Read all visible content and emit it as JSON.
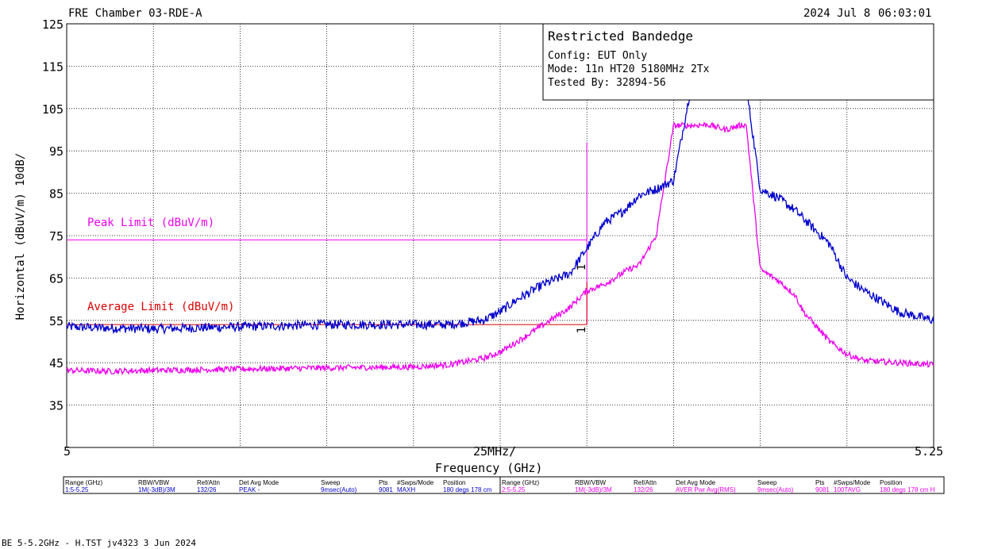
{
  "header": {
    "chamber": "FRE Chamber 03-RDE-A",
    "date": "2024 Jul 8",
    "time": "06:03:01"
  },
  "info_box": {
    "title": "Restricted Bandedge",
    "config": "Config: EUT Only",
    "mode": "Mode: 11n HT20 5180MHz 2Tx",
    "tested_by": "Tested By: 32894-56"
  },
  "x_axis": {
    "left": "5",
    "center": "25MHz/",
    "right": "5.25",
    "label": "Frequency (GHz)"
  },
  "y_axis": {
    "label": "Horizontal (dBuV/m) 10dB/"
  },
  "limits": {
    "peak_label": "Peak Limit (dBuV/m)",
    "average_label": "Average Limit (dBuV/m)"
  },
  "markers": {
    "upper": "1",
    "lower": "1"
  },
  "settings_table": {
    "headers": [
      "Range (GHz)",
      "RBW/VBW",
      "Ref/Attn",
      "Det Avg Mode",
      "Sweep",
      "Pts",
      "#Swps/Mode",
      "Position"
    ],
    "rows": [
      [
        "1:5-5.25",
        "1M(-3dB)/3M",
        "132/26",
        "PEAK  -",
        "9msec(Auto)",
        "9081",
        "MAXH",
        "180 degs 178 cm"
      ],
      [
        "2:5-5.25",
        "1M(-3dB)/3M",
        "132/26",
        "AVER Pwr Avg(RMS)",
        "9msec(Auto)",
        "9081",
        "100TAVG",
        "180 degs 178 cm H"
      ]
    ]
  },
  "footer": "BE 5-5.2GHz - H.TST jv4323  3 Jun 2024",
  "colors": {
    "peak_trace": "#0000cc",
    "average_trace": "#ee00ee",
    "peak_limit": "#ee00ee",
    "average_limit": "#dd0000",
    "grid": "#000000"
  },
  "chart_data": {
    "type": "line",
    "xlim": [
      5.0,
      5.25
    ],
    "ylim": [
      25,
      125
    ],
    "y_ticks": [
      125,
      115,
      105,
      95,
      85,
      75,
      65,
      55,
      45,
      35
    ],
    "x_ticks": [
      "5",
      "25MHz/",
      "5.25"
    ],
    "xlabel": "Frequency (GHz)",
    "ylabel": "Horizontal (dBuV/m) 10dB/",
    "series": [
      {
        "key": "peak",
        "color": "#0000cc",
        "x": [
          5.0,
          5.0125,
          5.025,
          5.05,
          5.075,
          5.1,
          5.11,
          5.12,
          5.125,
          5.13,
          5.1375,
          5.145,
          5.15,
          5.155,
          5.16,
          5.162,
          5.165,
          5.17,
          5.175,
          5.18,
          5.185,
          5.19,
          5.195,
          5.196,
          5.2,
          5.205,
          5.21,
          5.2125,
          5.22,
          5.225,
          5.23,
          5.24,
          5.25
        ],
        "y": [
          53.5,
          53.2,
          53.0,
          53.5,
          54.0,
          54.0,
          54.0,
          55.0,
          57.0,
          60.0,
          63.5,
          66.0,
          72.0,
          78.0,
          80.5,
          82.0,
          84.5,
          86.0,
          88.0,
          110.0,
          110.2,
          109.0,
          110.2,
          110.0,
          86.0,
          84.0,
          81.0,
          79.0,
          73.0,
          65.0,
          62.0,
          57.0,
          55.0
        ]
      },
      {
        "key": "average",
        "color": "#ee00ee",
        "x": [
          5.0,
          5.0125,
          5.025,
          5.05,
          5.075,
          5.1,
          5.11,
          5.12,
          5.125,
          5.13,
          5.1375,
          5.145,
          5.15,
          5.155,
          5.16,
          5.162,
          5.165,
          5.17,
          5.175,
          5.18,
          5.185,
          5.19,
          5.195,
          5.196,
          5.2,
          5.205,
          5.21,
          5.2125,
          5.22,
          5.225,
          5.23,
          5.24,
          5.25
        ],
        "y": [
          43.2,
          43.0,
          43.2,
          43.5,
          43.8,
          44.0,
          44.5,
          46.0,
          47.5,
          50.0,
          54.0,
          58.0,
          62.0,
          63.5,
          66.0,
          67.0,
          68.0,
          75.0,
          101.0,
          101.0,
          101.2,
          100.0,
          101.2,
          101.0,
          67.0,
          64.5,
          61.0,
          57.0,
          50.0,
          47.0,
          45.5,
          45.0,
          44.5
        ]
      }
    ],
    "limits": [
      {
        "name": "Peak Limit (dBuV/m)",
        "value": 74,
        "x_start": 5.0,
        "x_end": 5.15,
        "color": "#ee00ee"
      },
      {
        "name": "Average Limit (dBuV/m)",
        "value": 54,
        "x_start": 5.0,
        "x_end": 5.15,
        "color": "#dd0000"
      }
    ],
    "vertical_line": {
      "x": 5.15,
      "y_bottom": 54,
      "y_top": 97,
      "color": "#ee00ee"
    }
  }
}
